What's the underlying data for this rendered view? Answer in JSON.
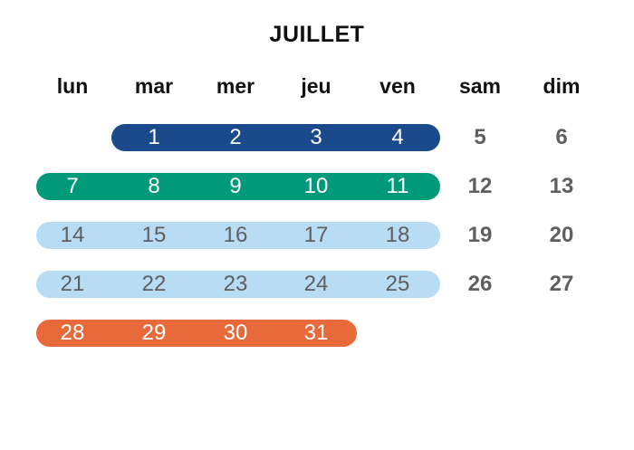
{
  "calendar": {
    "title": "JUILLET",
    "weekdays": [
      "lun",
      "mar",
      "mer",
      "jeu",
      "ven",
      "sam",
      "dim"
    ],
    "colors": {
      "week1": "#1a4a8c",
      "week2": "#009a7a",
      "week3": "#b7dcf4",
      "week4": "#b7dcf4",
      "week5": "#e8693a",
      "weekend_text": "#5f5f5f",
      "light_text": "#5f5f5f",
      "dark_text": "#ffffff"
    },
    "weeks": [
      {
        "days": [
          "",
          "1",
          "2",
          "3",
          "4"
        ],
        "weekend": [
          "5",
          "6"
        ],
        "bar_start": 1,
        "bar_end": 4,
        "color": "#1a4a8c",
        "text": "#ffffff"
      },
      {
        "days": [
          "7",
          "8",
          "9",
          "10",
          "11"
        ],
        "weekend": [
          "12",
          "13"
        ],
        "bar_start": 0,
        "bar_end": 4,
        "color": "#009a7a",
        "text": "#ffffff"
      },
      {
        "days": [
          "14",
          "15",
          "16",
          "17",
          "18"
        ],
        "weekend": [
          "19",
          "20"
        ],
        "bar_start": 0,
        "bar_end": 4,
        "color": "#b7dcf4",
        "text": "#5f5f5f"
      },
      {
        "days": [
          "21",
          "22",
          "23",
          "24",
          "25"
        ],
        "weekend": [
          "26",
          "27"
        ],
        "bar_start": 0,
        "bar_end": 4,
        "color": "#b7dcf4",
        "text": "#5f5f5f"
      },
      {
        "days": [
          "28",
          "29",
          "30",
          "31",
          ""
        ],
        "weekend": [
          "",
          ""
        ],
        "bar_start": 0,
        "bar_end": 3,
        "color": "#e8693a",
        "text": "#ffffff"
      }
    ]
  }
}
